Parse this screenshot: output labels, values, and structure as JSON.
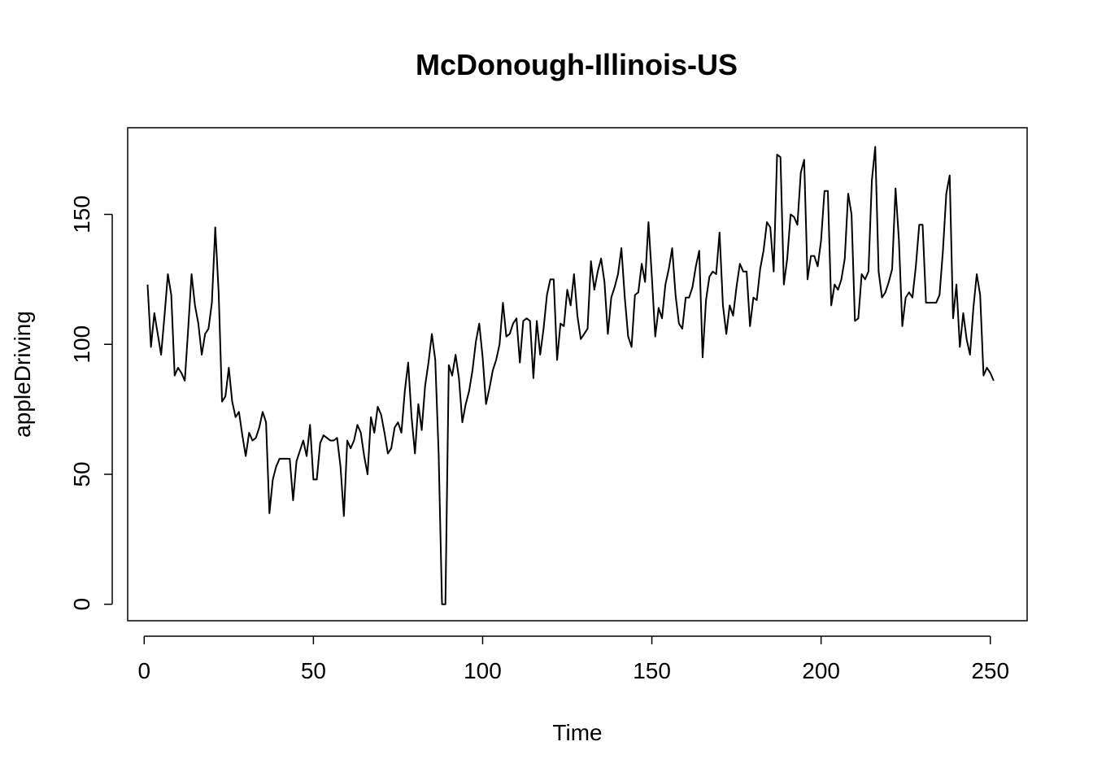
{
  "chart_data": {
    "type": "line",
    "title": "McDonough-Illinois-US",
    "xlabel": "Time",
    "ylabel": "appleDriving",
    "xlim": [
      -4.88,
      260.88
    ],
    "ylim": [
      -6.34,
      183.34
    ],
    "xticks": [
      0,
      50,
      100,
      150,
      200,
      250
    ],
    "yticks": [
      0,
      50,
      100,
      150
    ],
    "xtick_labels": [
      "0",
      "50",
      "100",
      "150",
      "200",
      "250"
    ],
    "ytick_labels": [
      "0",
      "50",
      "100",
      "150"
    ],
    "series": [
      {
        "color": "#000000",
        "x_start": 1,
        "values": [
          123,
          99,
          112,
          104,
          96,
          111,
          127,
          119,
          88,
          91,
          89,
          86,
          106,
          127,
          115,
          108,
          96,
          104,
          106,
          116,
          145,
          120,
          78,
          80,
          91,
          78,
          72,
          74,
          65,
          57,
          66,
          63,
          64,
          68,
          74,
          70,
          35,
          48,
          53,
          56,
          56,
          56,
          56,
          40,
          55,
          59,
          63,
          57,
          69,
          48,
          48,
          62,
          65,
          64,
          63,
          63,
          64,
          53,
          34,
          63,
          60,
          63,
          69,
          66,
          57,
          50,
          72,
          66,
          76,
          73,
          66,
          58,
          60,
          68,
          70,
          66,
          82,
          93,
          72,
          58,
          77,
          67,
          84,
          93,
          104,
          94,
          58,
          0,
          0,
          92,
          88,
          96,
          87,
          70,
          77,
          82,
          90,
          101,
          108,
          95,
          77,
          83,
          90,
          94,
          100,
          116,
          103,
          104,
          108,
          110,
          93,
          109,
          110,
          109,
          87,
          109,
          96,
          106,
          119,
          125,
          125,
          94,
          108,
          107,
          121,
          115,
          127,
          111,
          102,
          104,
          106,
          132,
          121,
          128,
          133,
          124,
          104,
          118,
          122,
          127,
          137,
          118,
          103,
          99,
          119,
          120,
          131,
          124,
          147,
          126,
          103,
          114,
          110,
          123,
          129,
          137,
          119,
          108,
          106,
          118,
          118,
          122,
          130,
          136,
          95,
          117,
          126,
          128,
          127,
          143,
          115,
          104,
          115,
          111,
          122,
          131,
          128,
          128,
          107,
          118,
          117,
          129,
          136,
          147,
          145,
          128,
          173,
          172,
          123,
          133,
          150,
          149,
          146,
          166,
          171,
          125,
          134,
          134,
          130,
          140,
          159,
          159,
          115,
          123,
          121,
          125,
          133,
          158,
          150,
          109,
          110,
          127,
          125,
          128,
          163,
          176,
          128,
          118,
          120,
          124,
          129,
          160,
          140,
          107,
          118,
          120,
          118,
          130,
          146,
          146,
          116,
          116,
          116,
          116,
          119,
          136,
          158,
          165,
          110,
          123,
          99,
          112,
          102,
          96,
          114,
          127,
          119,
          88,
          91,
          89,
          86
        ]
      }
    ]
  }
}
